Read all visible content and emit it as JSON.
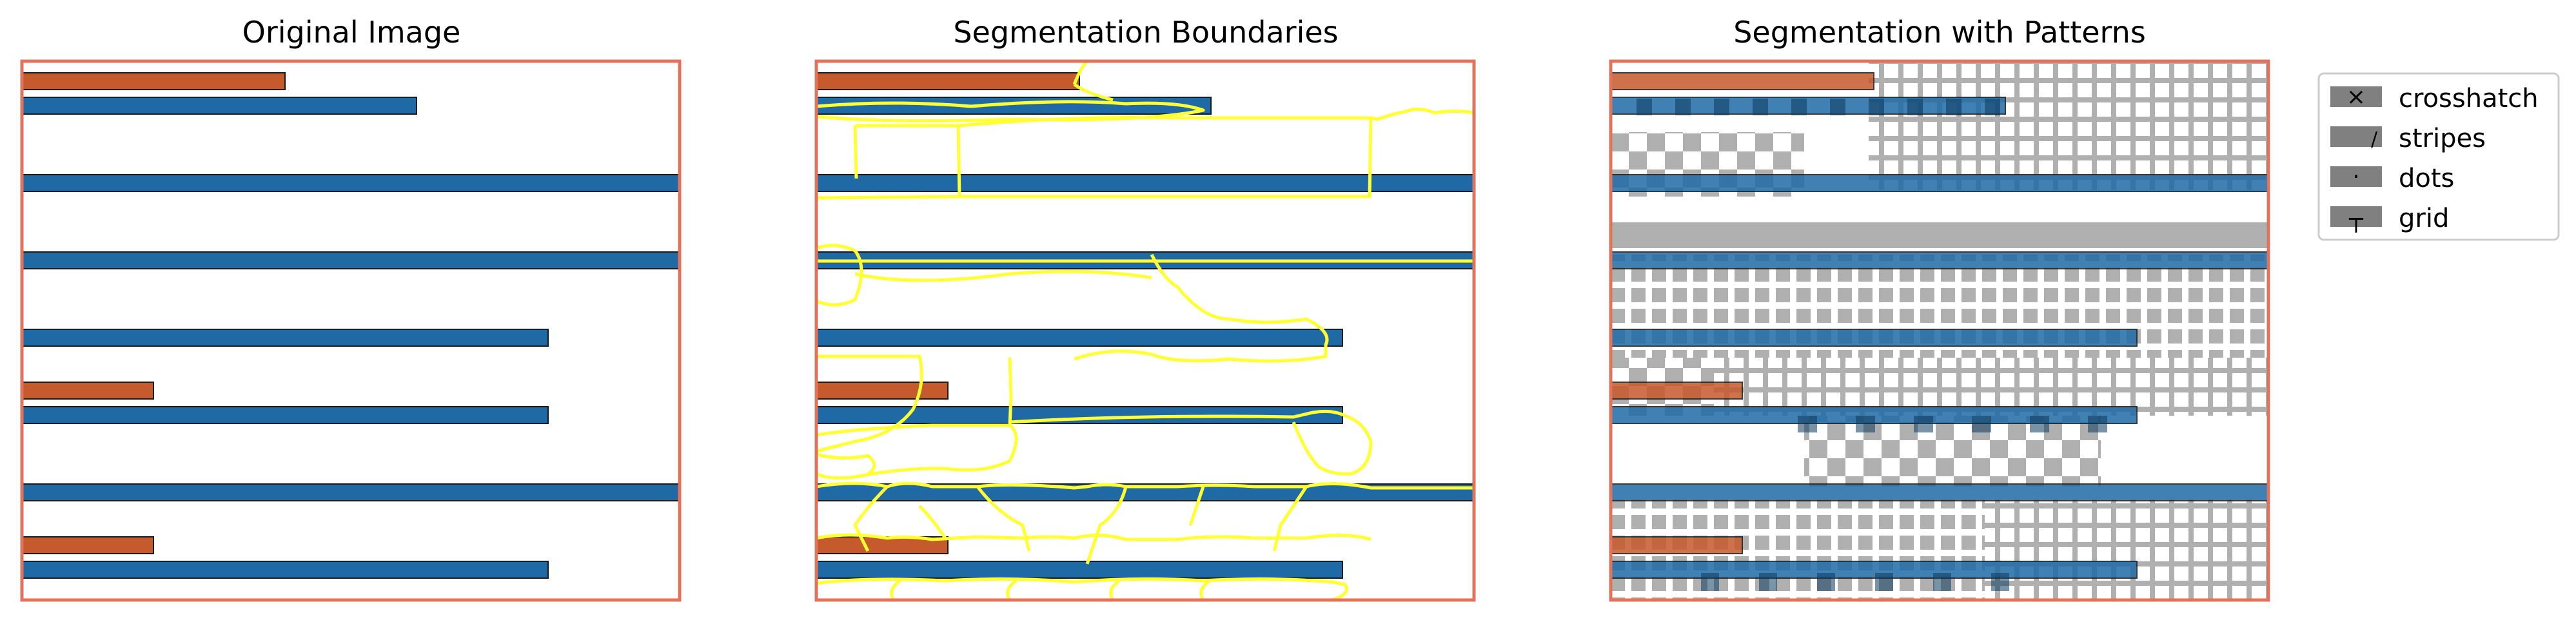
{
  "figure": {
    "panels": [
      {
        "title": "Original Image"
      },
      {
        "title": "Segmentation Boundaries"
      },
      {
        "title": "Segmentation with Patterns"
      }
    ],
    "legend": {
      "placement": "right",
      "items": [
        {
          "label": "crosshatch",
          "marker": "×"
        },
        {
          "label": "stripes",
          "marker": "/"
        },
        {
          "label": "dots",
          "marker": "·"
        },
        {
          "label": "grid",
          "marker": "┬"
        }
      ]
    },
    "colors": {
      "blue_bar": "#1f6aa5",
      "orange_bar": "#c55a2c",
      "frame": "#e0735a",
      "boundary": "#ffff33",
      "pattern_gray": "#b0b0b0",
      "legend_swatch": "#808080"
    }
  },
  "chart_data": {
    "type": "bar",
    "orientation": "horizontal",
    "xlim": [
      0,
      100
    ],
    "series": [
      {
        "color": "#c55a2c",
        "values": [
          40,
          0,
          0,
          0,
          20,
          0,
          20
        ]
      },
      {
        "color": "#1f6aa5",
        "values": [
          60,
          100,
          100,
          80,
          80,
          100,
          80
        ]
      }
    ]
  }
}
